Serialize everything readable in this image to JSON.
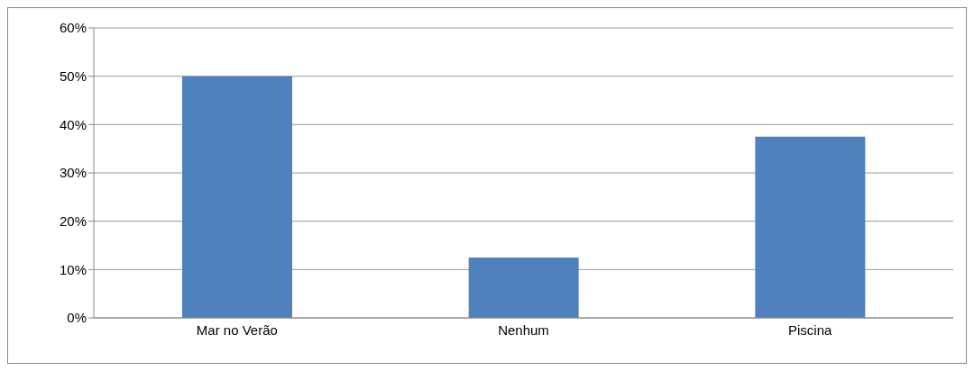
{
  "chart_data": {
    "type": "bar",
    "categories": [
      "Mar no Verão",
      "Nenhum",
      "Piscina"
    ],
    "values": [
      50,
      12.5,
      37.5
    ],
    "color": "#4f81bd",
    "ylim": [
      0,
      60
    ],
    "yticks": [
      {
        "value": 0,
        "label": "0%"
      },
      {
        "value": 10,
        "label": "10%"
      },
      {
        "value": 20,
        "label": "20%"
      },
      {
        "value": 30,
        "label": "30%"
      },
      {
        "value": 40,
        "label": "40%"
      },
      {
        "value": 50,
        "label": "50%"
      },
      {
        "value": 60,
        "label": "60%"
      }
    ],
    "grid": "y"
  }
}
